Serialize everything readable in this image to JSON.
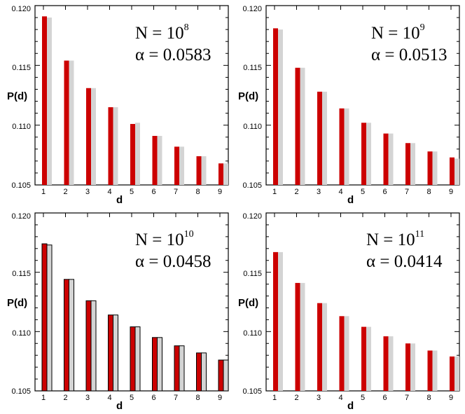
{
  "colors": {
    "primary": "#cc0000",
    "secondary": "#d4d4d4",
    "frame": "#000000"
  },
  "chart_data": [
    {
      "type": "bar",
      "categories": [
        "1",
        "2",
        "3",
        "4",
        "5",
        "6",
        "7",
        "8",
        "9"
      ],
      "series": [
        {
          "name": "red",
          "values": [
            0.1191,
            0.1154,
            0.1131,
            0.1115,
            0.1101,
            0.1091,
            0.1082,
            0.1074,
            0.1068
          ]
        },
        {
          "name": "grey",
          "values": [
            0.119,
            0.1154,
            0.1131,
            0.1115,
            0.1102,
            0.1091,
            0.1082,
            0.1074,
            0.1068
          ]
        }
      ],
      "ylim": [
        0.105,
        0.12
      ],
      "yticks": [
        "0.105",
        "0.110",
        "0.115",
        "0.120"
      ],
      "xlabel": "d",
      "ylabel": "P(d)",
      "annotation": {
        "n_base": "N = 10",
        "n_exp": "8",
        "alpha": "α = 0.0583"
      }
    },
    {
      "type": "bar",
      "categories": [
        "1",
        "2",
        "3",
        "4",
        "5",
        "6",
        "7",
        "8",
        "9"
      ],
      "series": [
        {
          "name": "red",
          "values": [
            0.1181,
            0.1148,
            0.1128,
            0.1114,
            0.1102,
            0.1093,
            0.1085,
            0.1078,
            0.1073
          ]
        },
        {
          "name": "grey",
          "values": [
            0.118,
            0.1148,
            0.1128,
            0.1114,
            0.1102,
            0.1093,
            0.1085,
            0.1078,
            0.1072
          ]
        }
      ],
      "ylim": [
        0.105,
        0.12
      ],
      "yticks": [
        "0.105",
        "0.110",
        "0.115",
        "0.120"
      ],
      "xlabel": "d",
      "ylabel": "P(d)",
      "annotation": {
        "n_base": "N = 10",
        "n_exp": "9",
        "alpha": "α = 0.0513"
      }
    },
    {
      "type": "bar",
      "categories": [
        "1",
        "2",
        "3",
        "4",
        "5",
        "6",
        "7",
        "8",
        "9"
      ],
      "series": [
        {
          "name": "red",
          "values": [
            0.1174,
            0.1144,
            0.1126,
            0.1114,
            0.1104,
            0.1095,
            0.1088,
            0.1082,
            0.1076
          ]
        },
        {
          "name": "grey",
          "values": [
            0.1173,
            0.1144,
            0.1126,
            0.1114,
            0.1104,
            0.1095,
            0.1088,
            0.1082,
            0.1076
          ]
        }
      ],
      "ylim": [
        0.105,
        0.12
      ],
      "yticks": [
        "0.105",
        "0.110",
        "0.115",
        "0.120"
      ],
      "xlabel": "d",
      "ylabel": "P(d)",
      "annotation": {
        "n_base": "N = 10",
        "n_exp": "10",
        "alpha": "α = 0.0458"
      }
    },
    {
      "type": "bar",
      "categories": [
        "1",
        "2",
        "3",
        "4",
        "5",
        "6",
        "7",
        "8",
        "9"
      ],
      "series": [
        {
          "name": "red",
          "values": [
            0.1167,
            0.1141,
            0.1124,
            0.1113,
            0.1104,
            0.1096,
            0.109,
            0.1084,
            0.1079
          ]
        },
        {
          "name": "grey",
          "values": [
            0.1167,
            0.1141,
            0.1124,
            0.1113,
            0.1104,
            0.1096,
            0.109,
            0.1084,
            0.1079
          ]
        }
      ],
      "ylim": [
        0.105,
        0.12
      ],
      "yticks": [
        "0.105",
        "0.110",
        "0.115",
        "0.120"
      ],
      "xlabel": "d",
      "ylabel": "P(d)",
      "annotation": {
        "n_base": "N = 10",
        "n_exp": "11",
        "alpha": "α = 0.0414"
      }
    }
  ]
}
